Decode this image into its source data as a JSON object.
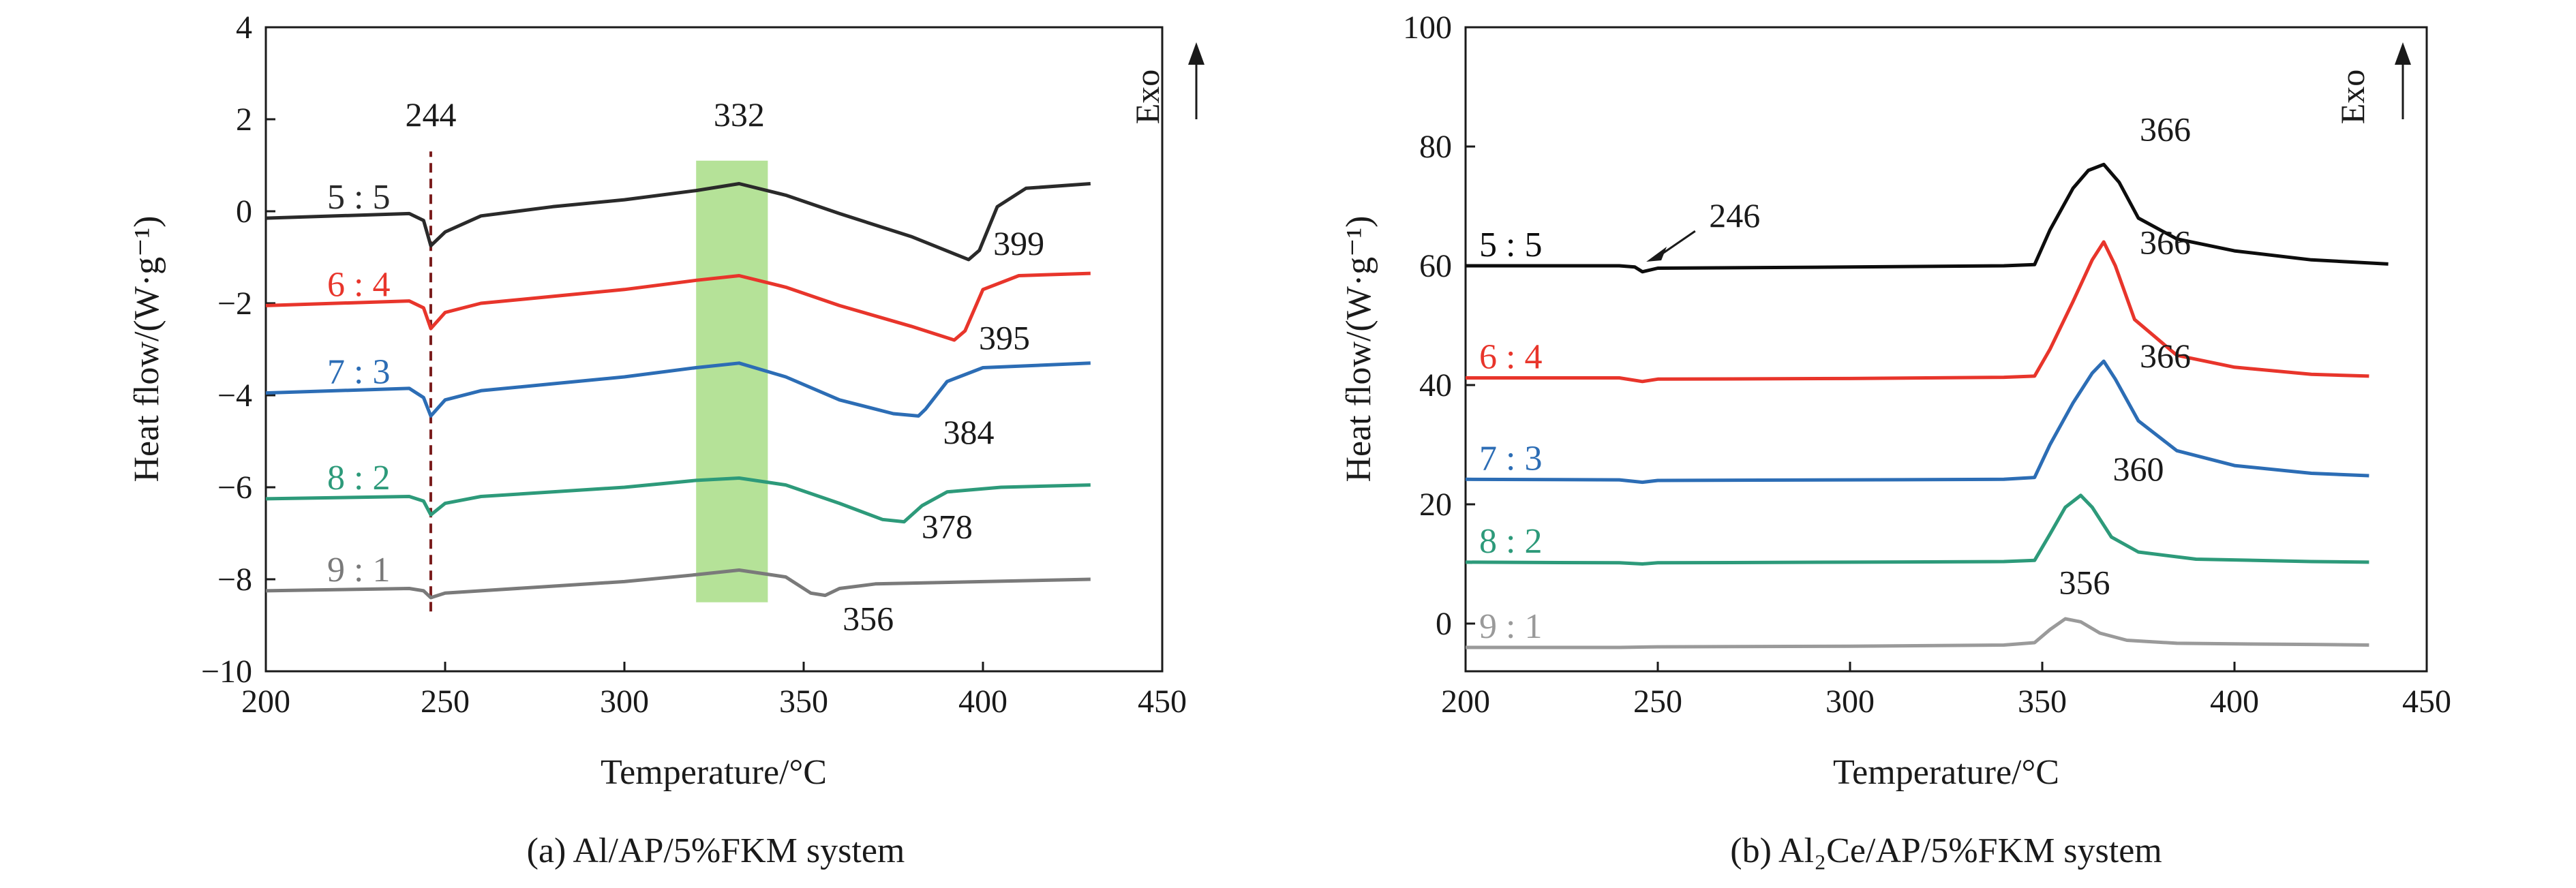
{
  "panels": [
    {
      "caption": "(a) Al/AP/5%FKM system",
      "xlabel": "Temperature/°C",
      "ylabel": "Heat flow/(W·g⁻¹)",
      "exo_label": "Exo",
      "xlim": [
        200,
        450
      ],
      "ylim": [
        -10,
        4
      ],
      "xticks": [
        "200",
        "250",
        "300",
        "350",
        "400",
        "450"
      ],
      "yticks": [
        "4",
        "2",
        "0",
        "−2",
        "−4",
        "−6",
        "−8",
        "−10"
      ]
    },
    {
      "caption": "(b) Al₂Ce/AP/5%FKM system",
      "xlabel": "Temperature/°C",
      "ylabel": "Heat flow/(W·g⁻¹)",
      "exo_label": "Exo",
      "xlim": [
        200,
        450
      ],
      "ylim": [
        -8,
        100
      ],
      "xticks": [
        "200",
        "250",
        "300",
        "350",
        "400",
        "450"
      ],
      "yticks": [
        "100",
        "80",
        "60",
        "40",
        "20",
        "0"
      ]
    }
  ],
  "chart_data": [
    {
      "type": "line",
      "caption": "(a) Al/AP/5%FKM system",
      "xlabel": "Temperature/°C",
      "ylabel": "Heat flow/(W·g⁻¹)",
      "xlim": [
        200,
        450
      ],
      "ylim": [
        -10,
        4
      ],
      "shaded_region": {
        "x": [
          320,
          340
        ],
        "y": [
          -8.5,
          1.1
        ],
        "color": "#a8dd86"
      },
      "dashed_line": {
        "x": 246,
        "y": [
          -8.7,
          1.3
        ],
        "color": "#7a1c1c"
      },
      "series": [
        {
          "name": "5 : 5",
          "color": "#2a2a2a",
          "x": [
            200,
            240,
            244,
            246,
            250,
            260,
            280,
            300,
            320,
            332,
            345,
            360,
            380,
            396,
            399,
            404,
            412,
            430
          ],
          "y": [
            -0.15,
            -0.05,
            -0.2,
            -0.75,
            -0.45,
            -0.1,
            0.1,
            0.25,
            0.45,
            0.6,
            0.35,
            -0.05,
            -0.55,
            -1.05,
            -0.85,
            0.1,
            0.5,
            0.6
          ]
        },
        {
          "name": "6 : 4",
          "color": "#e8352b",
          "x": [
            200,
            240,
            244,
            246,
            250,
            260,
            280,
            300,
            320,
            332,
            345,
            360,
            380,
            392,
            395,
            400,
            410,
            430
          ],
          "y": [
            -2.05,
            -1.95,
            -2.1,
            -2.55,
            -2.2,
            -2.0,
            -1.85,
            -1.7,
            -1.5,
            -1.4,
            -1.65,
            -2.05,
            -2.5,
            -2.8,
            -2.6,
            -1.7,
            -1.4,
            -1.35
          ]
        },
        {
          "name": "7 : 3",
          "color": "#2c6db5",
          "x": [
            200,
            240,
            244,
            246,
            250,
            260,
            280,
            300,
            320,
            332,
            345,
            360,
            375,
            382,
            384,
            390,
            400,
            430
          ],
          "y": [
            -3.95,
            -3.85,
            -4.05,
            -4.45,
            -4.1,
            -3.9,
            -3.75,
            -3.6,
            -3.4,
            -3.3,
            -3.6,
            -4.1,
            -4.4,
            -4.45,
            -4.3,
            -3.7,
            -3.4,
            -3.3
          ]
        },
        {
          "name": "8 : 2",
          "color": "#2d9a7a",
          "x": [
            200,
            240,
            244,
            246,
            250,
            260,
            280,
            300,
            320,
            332,
            345,
            360,
            372,
            378,
            383,
            390,
            405,
            430
          ],
          "y": [
            -6.25,
            -6.2,
            -6.3,
            -6.6,
            -6.35,
            -6.2,
            -6.1,
            -6.0,
            -5.85,
            -5.8,
            -5.95,
            -6.35,
            -6.7,
            -6.75,
            -6.4,
            -6.1,
            -6.0,
            -5.95
          ]
        },
        {
          "name": "9 : 1",
          "color": "#7a7a7a",
          "x": [
            200,
            240,
            244,
            246,
            250,
            260,
            280,
            300,
            320,
            332,
            345,
            352,
            356,
            360,
            370,
            400,
            430
          ],
          "y": [
            -8.25,
            -8.2,
            -8.25,
            -8.4,
            -8.3,
            -8.25,
            -8.15,
            -8.05,
            -7.9,
            -7.8,
            -7.95,
            -8.3,
            -8.35,
            -8.2,
            -8.1,
            -8.05,
            -8.0
          ]
        }
      ],
      "annotations": [
        {
          "text": "244",
          "x": 246,
          "y": 1.85
        },
        {
          "text": "332",
          "x": 332,
          "y": 1.85
        },
        {
          "text": "399",
          "x": 410,
          "y": -0.95
        },
        {
          "text": "395",
          "x": 406,
          "y": -3.0
        },
        {
          "text": "384",
          "x": 396,
          "y": -5.05
        },
        {
          "text": "378",
          "x": 390,
          "y": -7.1
        },
        {
          "text": "356",
          "x": 368,
          "y": -9.1
        }
      ]
    },
    {
      "type": "line",
      "caption": "(b) Al₂Ce/AP/5%FKM system",
      "xlabel": "Temperature/°C",
      "ylabel": "Heat flow/(W·g⁻¹)",
      "xlim": [
        200,
        450
      ],
      "ylim": [
        -8,
        100
      ],
      "series": [
        {
          "name": "5 : 5",
          "color": "#0d0d0d",
          "x": [
            200,
            240,
            244,
            246,
            250,
            300,
            340,
            348,
            352,
            358,
            362,
            366,
            370,
            375,
            385,
            400,
            420,
            440
          ],
          "y": [
            60,
            60,
            59.8,
            59.0,
            59.6,
            59.8,
            60,
            60.2,
            66,
            73,
            76,
            77,
            74,
            68,
            64.5,
            62.5,
            61,
            60.3
          ]
        },
        {
          "name": "6 : 4",
          "color": "#e8352b",
          "x": [
            200,
            240,
            246,
            250,
            300,
            340,
            348,
            352,
            358,
            363,
            366,
            369,
            374,
            385,
            400,
            420,
            435
          ],
          "y": [
            41.2,
            41.2,
            40.6,
            41.0,
            41.1,
            41.3,
            41.5,
            46,
            54,
            61,
            64,
            60,
            51,
            45,
            43,
            41.8,
            41.5
          ]
        },
        {
          "name": "7 : 3",
          "color": "#2c6db5",
          "x": [
            200,
            240,
            246,
            250,
            300,
            340,
            348,
            352,
            358,
            363,
            366,
            369,
            375,
            385,
            400,
            420,
            435
          ],
          "y": [
            24.2,
            24.1,
            23.7,
            24.0,
            24.1,
            24.2,
            24.5,
            30,
            37,
            42,
            44,
            41,
            34,
            29,
            26.5,
            25.2,
            24.8
          ]
        },
        {
          "name": "8 : 2",
          "color": "#2d9a7a",
          "x": [
            200,
            240,
            246,
            250,
            300,
            340,
            348,
            352,
            356,
            360,
            363,
            368,
            375,
            390,
            420,
            435
          ],
          "y": [
            10.3,
            10.2,
            10.0,
            10.2,
            10.3,
            10.4,
            10.6,
            15,
            19.5,
            21.5,
            19.5,
            14.5,
            12,
            10.8,
            10.4,
            10.3
          ]
        },
        {
          "name": "9 : 1",
          "color": "#9a9a9a",
          "x": [
            200,
            240,
            250,
            300,
            340,
            348,
            352,
            356,
            360,
            365,
            372,
            385,
            400,
            420,
            435
          ],
          "y": [
            -4.0,
            -4.0,
            -3.9,
            -3.8,
            -3.6,
            -3.2,
            -1.0,
            0.8,
            0.3,
            -1.6,
            -2.8,
            -3.3,
            -3.4,
            -3.5,
            -3.6
          ]
        }
      ],
      "annotations": [
        {
          "text": "246",
          "x": 270,
          "y": 66.5
        },
        {
          "text": "366",
          "x": 382,
          "y": 81
        },
        {
          "text": "366",
          "x": 382,
          "y": 62
        },
        {
          "text": "366",
          "x": 382,
          "y": 43
        },
        {
          "text": "360",
          "x": 375,
          "y": 24
        },
        {
          "text": "356",
          "x": 361,
          "y": 5
        }
      ]
    }
  ]
}
